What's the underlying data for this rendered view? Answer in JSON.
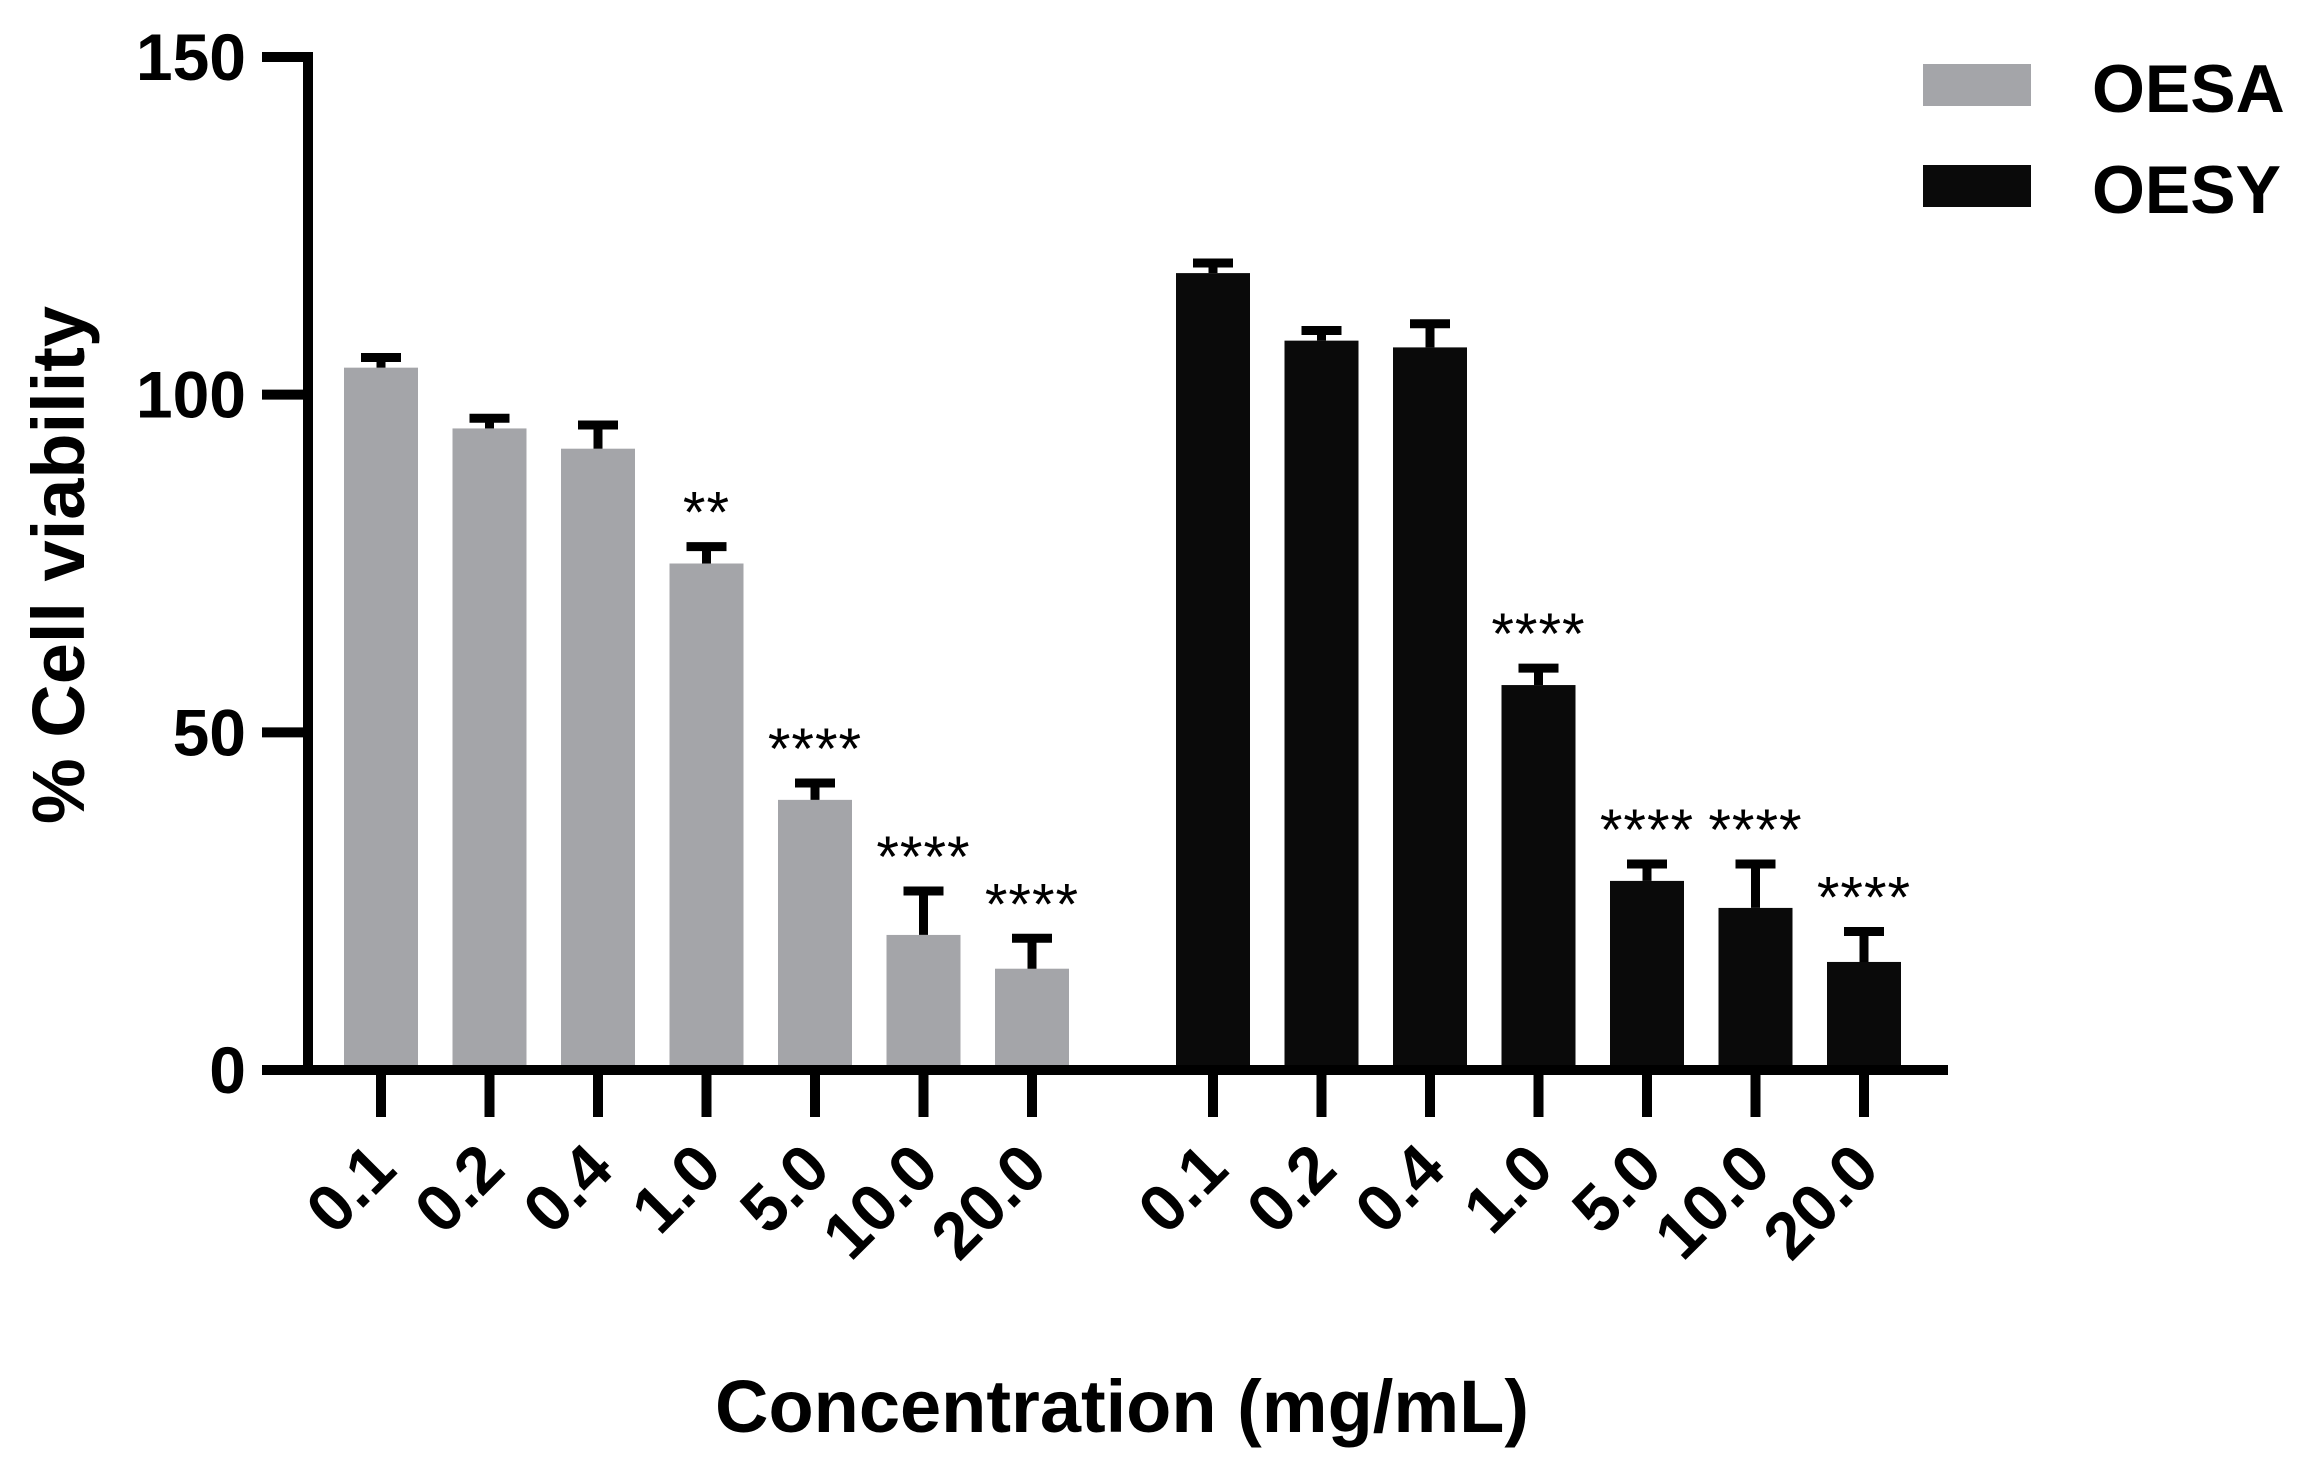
{
  "chart_data": {
    "type": "bar",
    "title": "",
    "xlabel": "Concentration (mg/mL)",
    "ylabel": "% Cell viability",
    "ylim": [
      0,
      150
    ],
    "yticks": [
      "0",
      "50",
      "100",
      "150"
    ],
    "legend_position": "top-right",
    "series": [
      {
        "name": "OESA",
        "color": "#a4a5a9",
        "categories": [
          "0.1",
          "0.2",
          "0.4",
          "1.0",
          "5.0",
          "10.0",
          "20.0"
        ],
        "values": [
          104,
          95,
          92,
          75,
          40,
          20,
          15
        ],
        "errors": [
          1.5,
          1.5,
          3.5,
          2.5,
          2.5,
          6.5,
          4.5
        ],
        "annotations": [
          "",
          "",
          "",
          "**",
          "****",
          "****",
          "****"
        ]
      },
      {
        "name": "OESY",
        "color": "#0a0a0a",
        "categories": [
          "0.1",
          "0.2",
          "0.4",
          "1.0",
          "5.0",
          "10.0",
          "20.0"
        ],
        "values": [
          118,
          108,
          107,
          57,
          28,
          24,
          16
        ],
        "errors": [
          1.5,
          1.5,
          3.5,
          2.5,
          2.5,
          6.5,
          4.5
        ],
        "annotations": [
          "",
          "",
          "",
          "****",
          "****",
          "****",
          "****"
        ]
      }
    ]
  }
}
